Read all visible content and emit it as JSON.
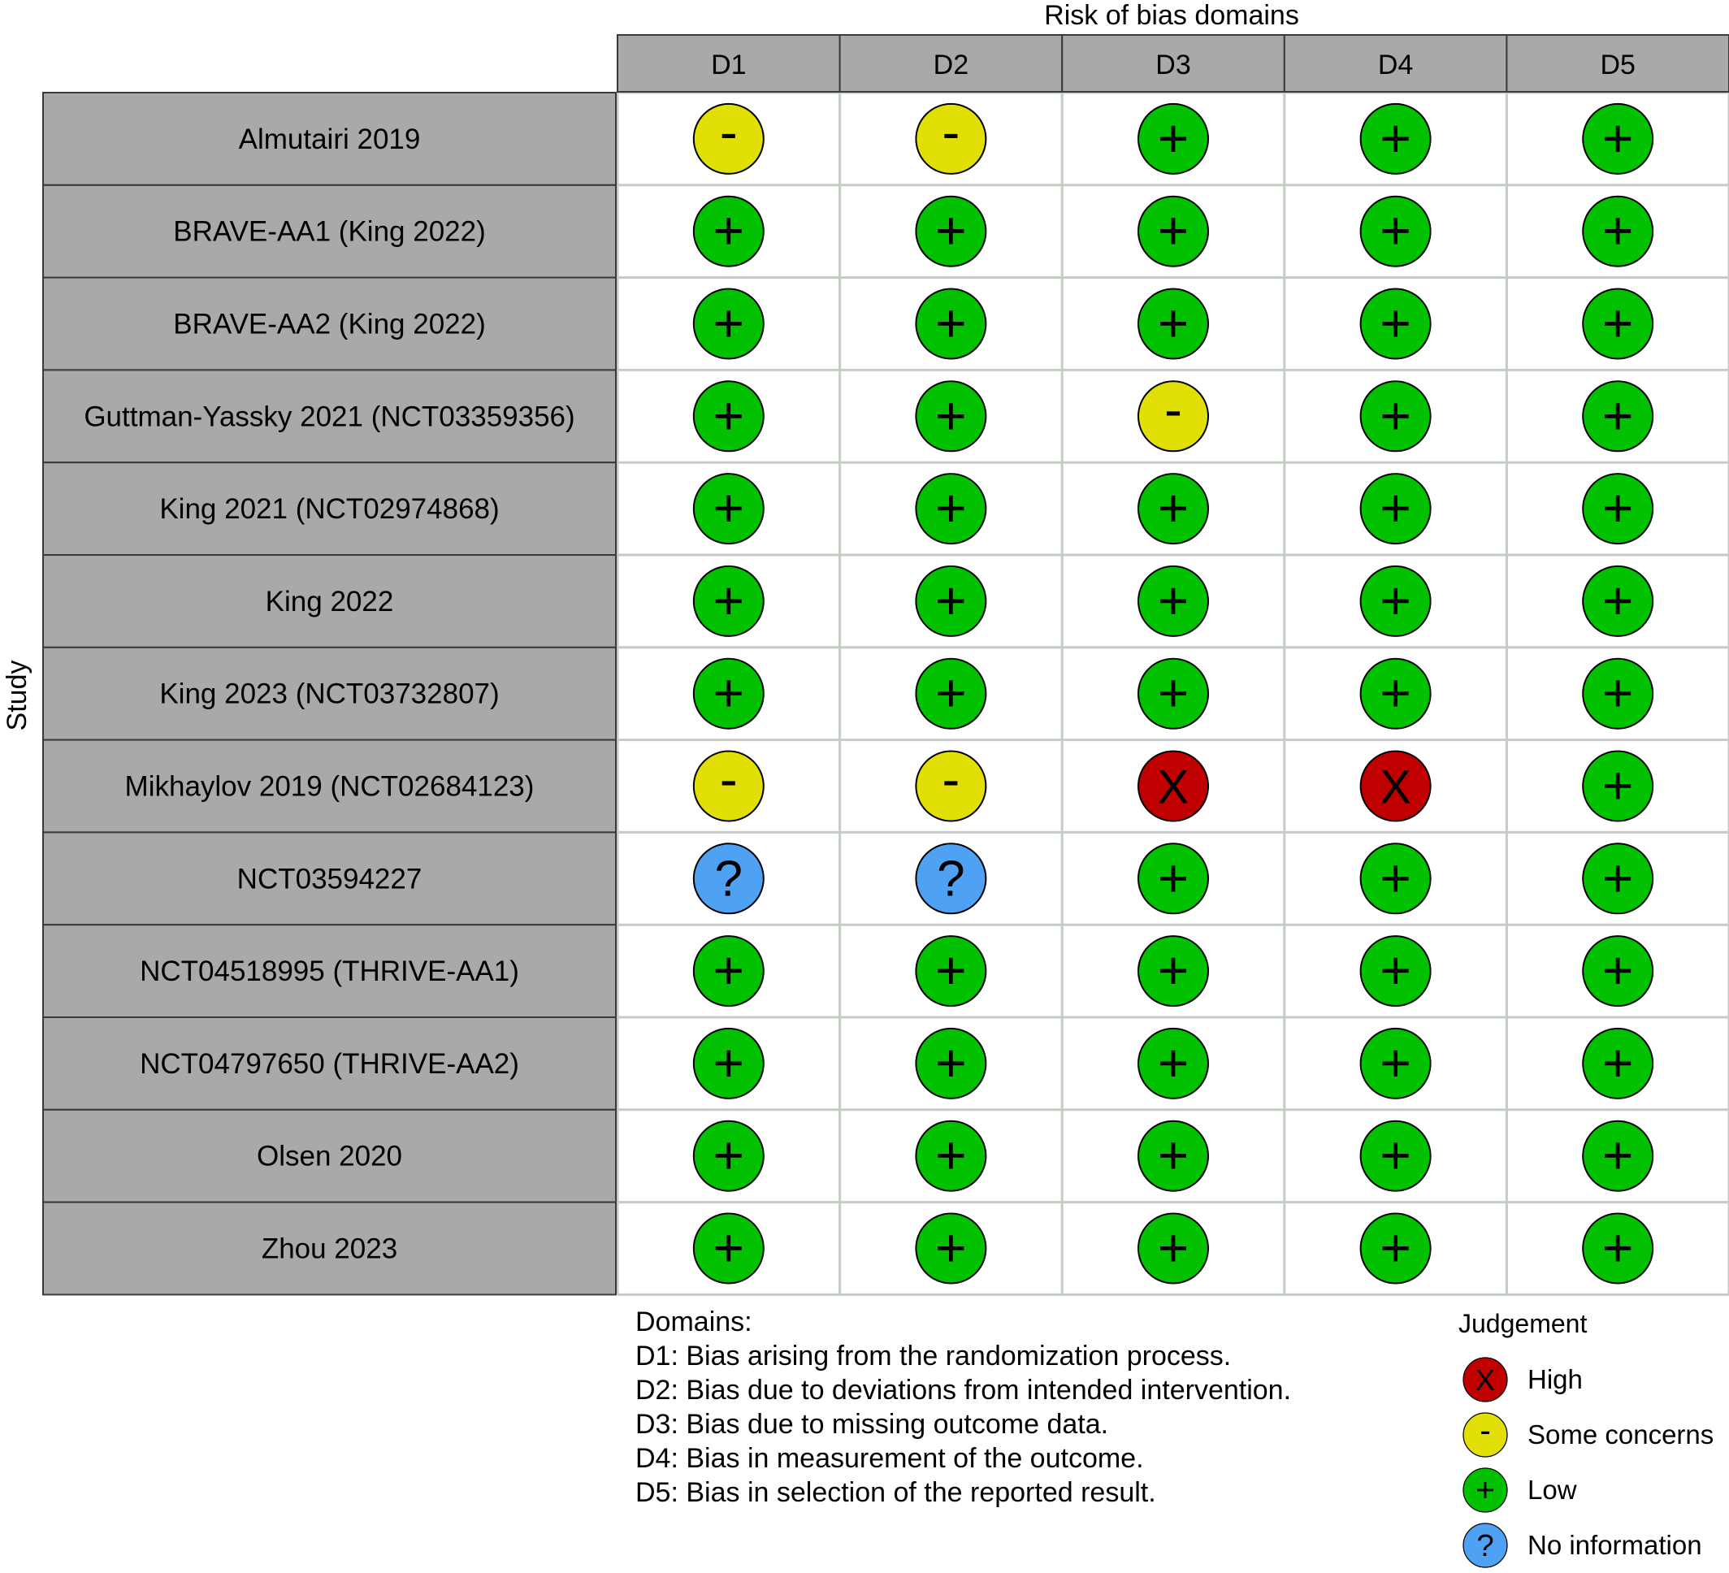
{
  "chart_data": {
    "type": "table",
    "title": "Risk of bias domains",
    "ylabel": "Study",
    "domains": [
      "D1",
      "D2",
      "D3",
      "D4",
      "D5"
    ],
    "studies": [
      {
        "name": "Almutairi 2019",
        "judgements": [
          "-",
          "-",
          "+",
          "+",
          "+"
        ]
      },
      {
        "name": "BRAVE-AA1 (King 2022)",
        "judgements": [
          "+",
          "+",
          "+",
          "+",
          "+"
        ]
      },
      {
        "name": "BRAVE-AA2 (King 2022)",
        "judgements": [
          "+",
          "+",
          "+",
          "+",
          "+"
        ]
      },
      {
        "name": "Guttman-Yassky 2021 (NCT03359356)",
        "judgements": [
          "+",
          "+",
          "-",
          "+",
          "+"
        ]
      },
      {
        "name": "King 2021 (NCT02974868)",
        "judgements": [
          "+",
          "+",
          "+",
          "+",
          "+"
        ]
      },
      {
        "name": "King 2022",
        "judgements": [
          "+",
          "+",
          "+",
          "+",
          "+"
        ]
      },
      {
        "name": "King 2023 (NCT03732807)",
        "judgements": [
          "+",
          "+",
          "+",
          "+",
          "+"
        ]
      },
      {
        "name": "Mikhaylov 2019 (NCT02684123)",
        "judgements": [
          "-",
          "-",
          "X",
          "X",
          "+"
        ]
      },
      {
        "name": "NCT03594227",
        "judgements": [
          "?",
          "?",
          "+",
          "+",
          "+"
        ]
      },
      {
        "name": "NCT04518995 (THRIVE-AA1)",
        "judgements": [
          "+",
          "+",
          "+",
          "+",
          "+"
        ]
      },
      {
        "name": "NCT04797650 (THRIVE-AA2)",
        "judgements": [
          "+",
          "+",
          "+",
          "+",
          "+"
        ]
      },
      {
        "name": "Olsen 2020",
        "judgements": [
          "+",
          "+",
          "+",
          "+",
          "+"
        ]
      },
      {
        "name": "Zhou 2023",
        "judgements": [
          "+",
          "+",
          "+",
          "+",
          "+"
        ]
      }
    ],
    "domain_notes": {
      "heading": "Domains:",
      "lines": [
        "D1: Bias arising from the randomization process.",
        "D2: Bias due to deviations from intended intervention.",
        "D3: Bias due to missing outcome data.",
        "D4: Bias in measurement of the outcome.",
        "D5: Bias in selection of the reported result."
      ]
    },
    "legend": {
      "title": "Judgement",
      "position": "bottom-right",
      "items": [
        {
          "symbol": "X",
          "label": "High"
        },
        {
          "symbol": "-",
          "label": "Some concerns"
        },
        {
          "symbol": "+",
          "label": "Low"
        },
        {
          "symbol": "?",
          "label": "No information"
        }
      ]
    },
    "colors": {
      "X": "#c00000",
      "-": "#e2df07",
      "+": "#02c100",
      "?": "#4ea1f3",
      "header_fill": "#a9a9a9",
      "grid_line": "#c4cdc4"
    }
  }
}
